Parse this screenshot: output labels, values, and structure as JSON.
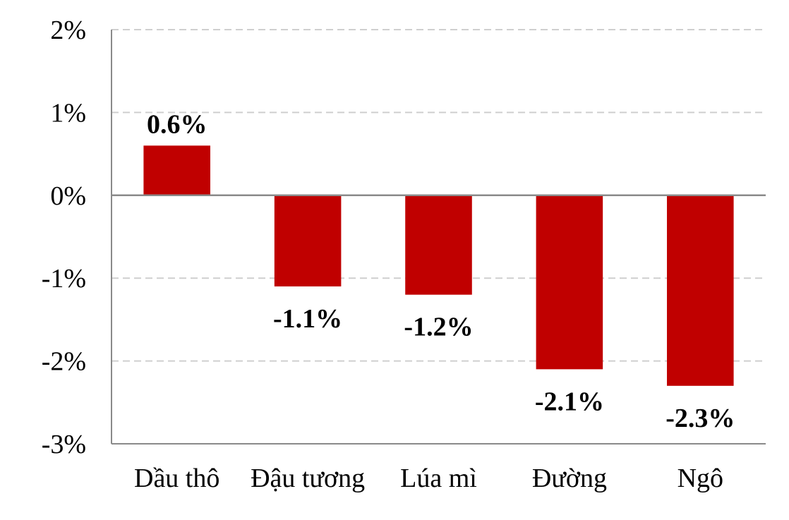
{
  "chart_data": {
    "type": "bar",
    "categories": [
      "Dầu thô",
      "Đậu tương",
      "Lúa mì",
      "Đường",
      "Ngô"
    ],
    "values": [
      0.6,
      -1.1,
      -1.2,
      -2.1,
      -2.3
    ],
    "data_labels": [
      "0.6%",
      "-1.1%",
      "-1.2%",
      "-2.1%",
      "-2.3%"
    ],
    "title": "",
    "xlabel": "",
    "ylabel": "",
    "ylim": [
      -3,
      2
    ],
    "yticks": [
      2,
      1,
      0,
      -1,
      -2,
      -3
    ],
    "ytick_labels": [
      "2%",
      "1%",
      "0%",
      "-1%",
      "-2%",
      "-3%"
    ],
    "grid": true,
    "legend": "none",
    "bar_color": "#c00000"
  }
}
